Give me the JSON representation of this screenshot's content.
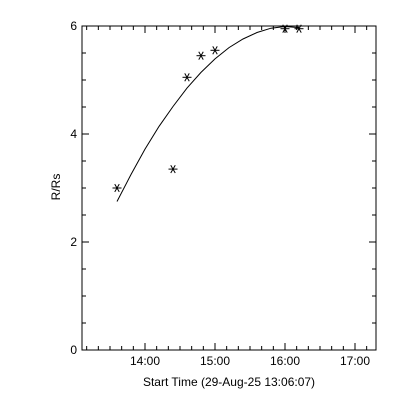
{
  "chart_data": {
    "type": "scatter",
    "title": "",
    "xlabel": "Start Time (29-Aug-25 13:06:07)",
    "ylabel": "R/Rs",
    "x_units": "hours",
    "xlim": [
      13.1,
      17.3
    ],
    "ylim": [
      0,
      6
    ],
    "x_ticks": [
      {
        "value": 14,
        "label": "14:00"
      },
      {
        "value": 15,
        "label": "15:00"
      },
      {
        "value": 16,
        "label": "16:00"
      },
      {
        "value": 17,
        "label": "17:00"
      }
    ],
    "y_ticks": [
      {
        "value": 0,
        "label": "0"
      },
      {
        "value": 2,
        "label": "2"
      },
      {
        "value": 4,
        "label": "4"
      },
      {
        "value": 6,
        "label": "6"
      }
    ],
    "series": [
      {
        "marker": "asterisk",
        "x": [
          13.6,
          14.4,
          14.6,
          14.8,
          15.0,
          16.0,
          16.2
        ],
        "y": [
          3.0,
          3.35,
          5.05,
          5.45,
          5.55,
          5.95,
          5.95
        ]
      }
    ],
    "fit": {
      "type": "quadratic",
      "x": [
        13.6,
        13.8,
        14.0,
        14.2,
        14.4,
        14.6,
        14.8,
        15.0,
        15.2,
        15.4,
        15.6,
        15.8,
        16.0,
        16.2
      ],
      "y": [
        2.75,
        3.25,
        3.72,
        4.14,
        4.51,
        4.85,
        5.14,
        5.39,
        5.6,
        5.76,
        5.88,
        5.96,
        5.99,
        5.97
      ]
    },
    "grid": false,
    "legend": "none"
  }
}
